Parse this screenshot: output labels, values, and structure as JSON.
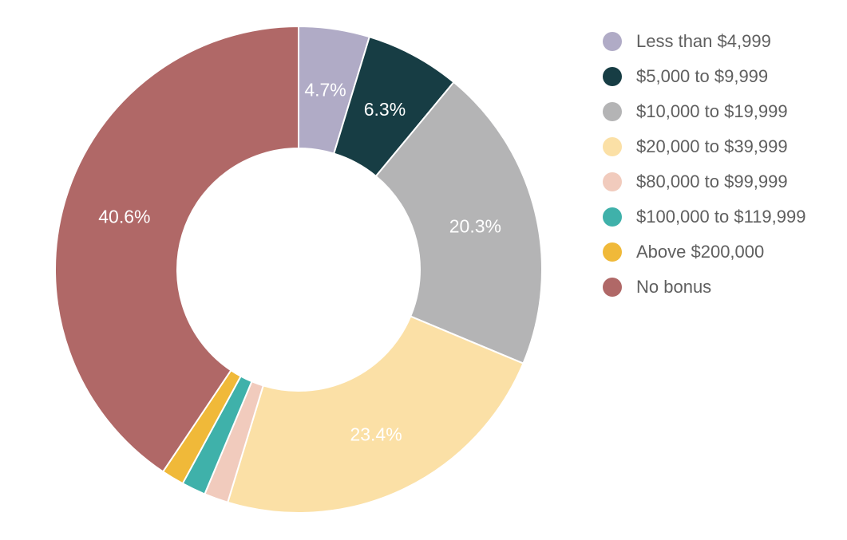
{
  "chart_data": {
    "type": "pie",
    "donut": true,
    "title": "",
    "legend_position": "right",
    "slices": [
      {
        "label": "Less than $4,999",
        "value": 4.7,
        "display": "4.7%",
        "color": "#b0abc6"
      },
      {
        "label": "$5,000 to $9,999",
        "value": 6.3,
        "display": "6.3%",
        "color": "#173d44"
      },
      {
        "label": "$10,000 to $19,999",
        "value": 20.3,
        "display": "20.3%",
        "color": "#b4b4b5"
      },
      {
        "label": "$20,000 to $39,999",
        "value": 23.4,
        "display": "23.4%",
        "color": "#fbe0a6"
      },
      {
        "label": "$80,000 to $99,999",
        "value": 1.6,
        "display": "",
        "color": "#f1cbbd"
      },
      {
        "label": "$100,000 to $119,999",
        "value": 1.6,
        "display": "",
        "color": "#3fb1aa"
      },
      {
        "label": "Above $200,000",
        "value": 1.5,
        "display": "",
        "color": "#f0b939"
      },
      {
        "label": "No bonus",
        "value": 40.6,
        "display": "40.6%",
        "color": "#b06867"
      }
    ]
  }
}
